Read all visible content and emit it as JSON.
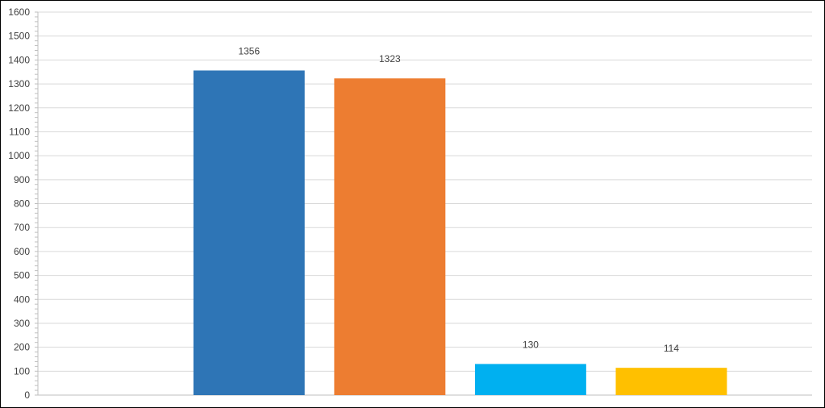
{
  "chart_data": {
    "type": "bar",
    "title": "",
    "xlabel": "",
    "ylabel": "",
    "categories": [
      "",
      "",
      "",
      ""
    ],
    "values": [
      1356,
      1323,
      130,
      114
    ],
    "colors": [
      "#2E75B6",
      "#ED7D31",
      "#00B0F0",
      "#FFC000"
    ],
    "ylim": [
      0,
      1600
    ],
    "yticks": [
      0,
      100,
      200,
      300,
      400,
      500,
      600,
      700,
      800,
      900,
      1000,
      1100,
      1200,
      1300,
      1400,
      1500,
      1600
    ],
    "ytick_labels": [
      "0",
      "100",
      "200",
      "300",
      "400",
      "500",
      "600",
      "700",
      "800",
      "900",
      "1000",
      "1100",
      "1200",
      "1300",
      "1400",
      "1500",
      "1600"
    ],
    "data_labels": [
      "1356",
      "1323",
      "130",
      "114"
    ],
    "grid": true,
    "legend": "none"
  }
}
